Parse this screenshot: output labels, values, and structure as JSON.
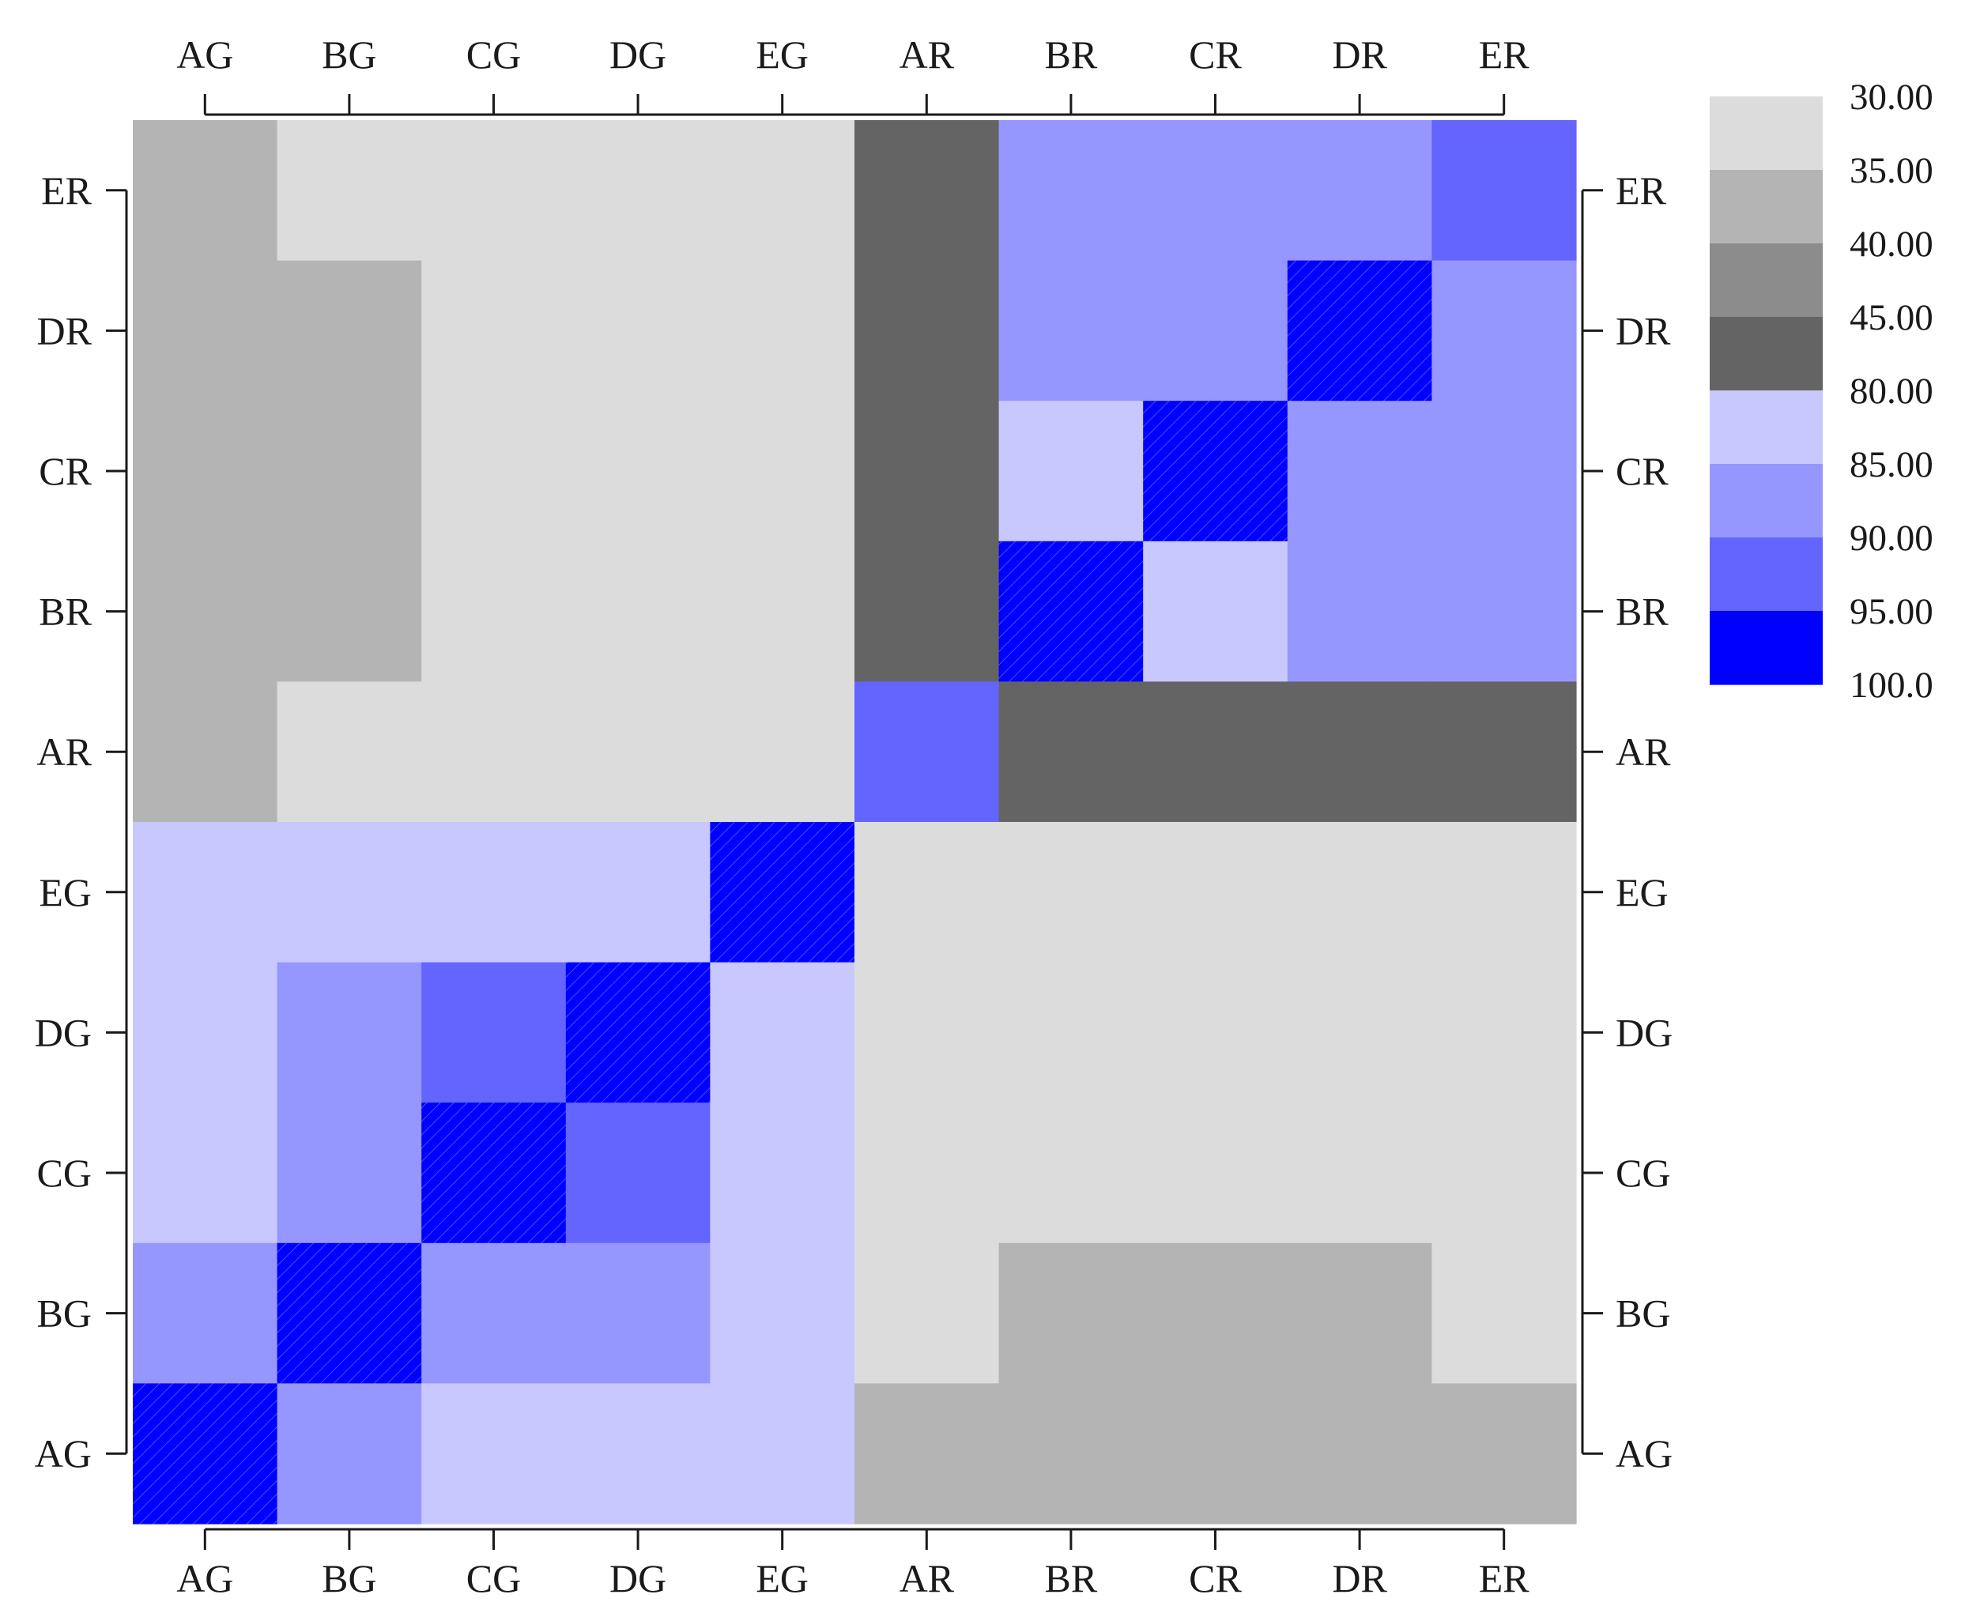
{
  "chart_data": {
    "type": "heatmap",
    "labels": [
      "AG",
      "BG",
      "CG",
      "DG",
      "EG",
      "AR",
      "BR",
      "CR",
      "DR",
      "ER"
    ],
    "x_labels_top": [
      "AG",
      "BG",
      "CG",
      "DG",
      "EG",
      "AR",
      "BR",
      "CR",
      "DR",
      "ER"
    ],
    "x_labels_bottom": [
      "AG",
      "BG",
      "CG",
      "DG",
      "EG",
      "AR",
      "BR",
      "CR",
      "DR",
      "ER"
    ],
    "y_labels_left": [
      "ER",
      "DR",
      "CR",
      "BR",
      "AR",
      "EG",
      "DG",
      "CG",
      "BG",
      "AG"
    ],
    "y_labels_right": [
      "ER",
      "DR",
      "CR",
      "BR",
      "AR",
      "EG",
      "DG",
      "CG",
      "BG",
      "AG"
    ],
    "rows_top_to_bottom": [
      "ER",
      "DR",
      "CR",
      "BR",
      "AR",
      "EG",
      "DG",
      "CG",
      "BG",
      "AG"
    ],
    "columns_left_to_right": [
      "AG",
      "BG",
      "CG",
      "DG",
      "EG",
      "AR",
      "BR",
      "CR",
      "DR",
      "ER"
    ],
    "values": [
      [
        37.5,
        32.5,
        32.5,
        32.5,
        32.5,
        62.5,
        87.5,
        87.5,
        87.5,
        92.5
      ],
      [
        37.5,
        37.5,
        32.5,
        32.5,
        32.5,
        62.5,
        87.5,
        87.5,
        100,
        87.5
      ],
      [
        37.5,
        37.5,
        32.5,
        32.5,
        32.5,
        62.5,
        82.5,
        100,
        87.5,
        87.5
      ],
      [
        37.5,
        37.5,
        32.5,
        32.5,
        32.5,
        62.5,
        100,
        82.5,
        87.5,
        87.5
      ],
      [
        37.5,
        32.5,
        32.5,
        32.5,
        32.5,
        92.5,
        62.5,
        62.5,
        62.5,
        62.5
      ],
      [
        82.5,
        82.5,
        82.5,
        82.5,
        100,
        32.5,
        32.5,
        32.5,
        32.5,
        32.5
      ],
      [
        82.5,
        87.5,
        92.5,
        100,
        82.5,
        32.5,
        32.5,
        32.5,
        32.5,
        32.5
      ],
      [
        82.5,
        87.5,
        100,
        92.5,
        82.5,
        32.5,
        32.5,
        32.5,
        32.5,
        32.5
      ],
      [
        87.5,
        100,
        87.5,
        87.5,
        82.5,
        32.5,
        37.5,
        37.5,
        37.5,
        32.5
      ],
      [
        100,
        87.5,
        82.5,
        82.5,
        82.5,
        37.5,
        37.5,
        37.5,
        37.5,
        37.5
      ]
    ],
    "legend": {
      "placement": "right",
      "tick_labels": [
        "30.00",
        "35.00",
        "40.00",
        "45.00",
        "80.00",
        "85.00",
        "90.00",
        "95.00",
        "100.0"
      ],
      "bins": [
        {
          "min": 30,
          "max": 35,
          "color": "#dcdcdc"
        },
        {
          "min": 35,
          "max": 40,
          "color": "#b4b4b4"
        },
        {
          "min": 40,
          "max": 45,
          "color": "#8c8c8c"
        },
        {
          "min": 45,
          "max": 80,
          "color": "#646464"
        },
        {
          "min": 80,
          "max": 85,
          "color": "#c8c8ff"
        },
        {
          "min": 85,
          "max": 90,
          "color": "#9696ff"
        },
        {
          "min": 90,
          "max": 95,
          "color": "#6464ff"
        },
        {
          "min": 95,
          "max": 100,
          "color": "#0000ff"
        }
      ]
    },
    "grid": false
  }
}
